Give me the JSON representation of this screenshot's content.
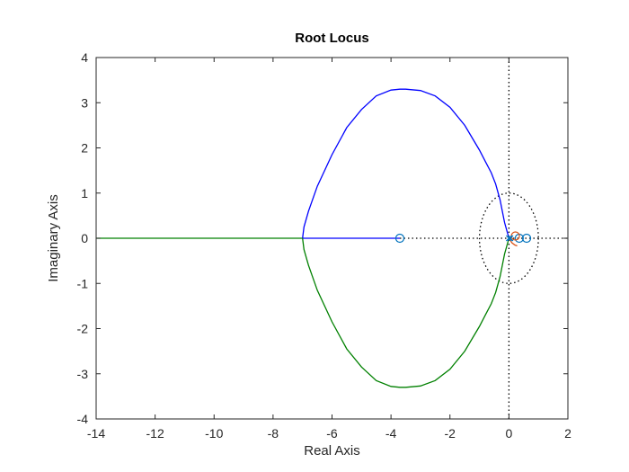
{
  "chart_data": {
    "type": "line",
    "title": "Root Locus",
    "xlabel": "Real Axis",
    "ylabel": "Imaginary Axis",
    "xlim": [
      -14,
      2
    ],
    "ylim": [
      -4,
      4
    ],
    "xticks": [
      -14,
      -12,
      -10,
      -8,
      -6,
      -4,
      -2,
      0,
      2
    ],
    "yticks": [
      -4,
      -3,
      -2,
      -1,
      0,
      1,
      2,
      3,
      4
    ],
    "xtick_labels": [
      "-14",
      "-12",
      "-10",
      "-8",
      "-6",
      "-4",
      "-2",
      "0",
      "2"
    ],
    "ytick_labels": [
      "-4",
      "-3",
      "-2",
      "-1",
      "0",
      "1",
      "2",
      "3",
      "4"
    ],
    "grid": false,
    "colors": {
      "branch_upper": "#0000ff",
      "branch_lower": "#008000",
      "branch_real": "#0000ff",
      "zeros_blue": "#0072bd",
      "zero_red": "#d95319",
      "reference_lines": "#000000"
    },
    "series": [
      {
        "x": [
          0.0,
          -0.15,
          -0.3,
          -0.45,
          -0.6,
          -0.8,
          -1.0,
          -1.5,
          -2.0,
          -2.5,
          -3.0,
          -3.5,
          -3.7,
          -4.0,
          -4.5,
          -5.0,
          -5.5,
          -6.0,
          -6.5,
          -6.8,
          -6.95,
          -7.0
        ],
        "y": [
          0.0,
          0.35,
          0.85,
          1.2,
          1.45,
          1.7,
          1.95,
          2.5,
          2.9,
          3.15,
          3.27,
          3.3,
          3.3,
          3.28,
          3.15,
          2.85,
          2.45,
          1.85,
          1.15,
          0.6,
          0.25,
          0.0
        ]
      },
      {
        "x": [
          0.0,
          -0.15,
          -0.3,
          -0.45,
          -0.6,
          -0.8,
          -1.0,
          -1.5,
          -2.0,
          -2.5,
          -3.0,
          -3.5,
          -3.7,
          -4.0,
          -4.5,
          -5.0,
          -5.5,
          -6.0,
          -6.5,
          -6.8,
          -6.95,
          -7.0
        ],
        "y": [
          0.0,
          -0.35,
          -0.85,
          -1.2,
          -1.45,
          -1.7,
          -1.95,
          -2.5,
          -2.9,
          -3.15,
          -3.27,
          -3.3,
          -3.3,
          -3.28,
          -3.15,
          -2.85,
          -2.45,
          -1.85,
          -1.15,
          -0.6,
          -0.25,
          0.0
        ]
      },
      {
        "x": [
          -7.0,
          -3.7
        ],
        "y": [
          0.0,
          0.0
        ]
      },
      {
        "x": [
          -7.0,
          -14.0
        ],
        "y": [
          0.0,
          0.0
        ]
      },
      {
        "x": [
          0.0,
          0.1,
          0.2,
          0.28
        ],
        "y": [
          0.0,
          -0.1,
          -0.15,
          -0.17
        ]
      }
    ],
    "zeros": [
      {
        "x": -3.7,
        "y": 0.0,
        "color": "blue"
      },
      {
        "x": 0.6,
        "y": 0.0,
        "color": "blue"
      },
      {
        "x": 0.35,
        "y": 0.0,
        "color": "blue"
      },
      {
        "x": 0.22,
        "y": 0.05,
        "color": "red"
      }
    ],
    "poles": [
      {
        "x": 0.0,
        "y": 0.0
      },
      {
        "x": 0.05,
        "y": 0.0
      }
    ],
    "unit_circle": {
      "center": [
        0,
        0
      ],
      "radius": 1.0,
      "style": "dotted"
    },
    "reference_lines": {
      "x0": true,
      "y0": true,
      "style": "dotted"
    }
  }
}
